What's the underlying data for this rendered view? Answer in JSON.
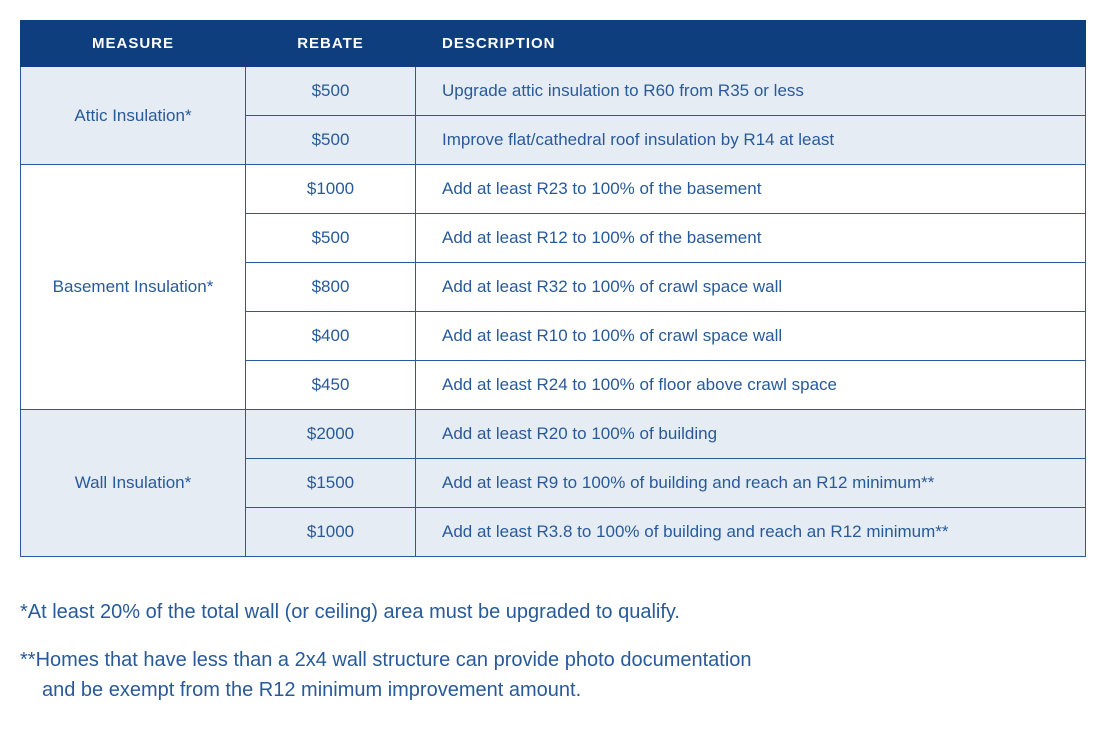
{
  "colors": {
    "header_bg": "#0f3e7e",
    "header_text": "#ffffff",
    "cell_text": "#285a9a",
    "border": "#2a5a9a",
    "row_alt_a": "#e6ecf4",
    "row_alt_b": "#ffffff"
  },
  "columns": {
    "measure": "MEASURE",
    "rebate": "REBATE",
    "description": "DESCRIPTION"
  },
  "sections": [
    {
      "measure": "Attic Insulation*",
      "rows": [
        {
          "rebate": "$500",
          "description": "Upgrade attic insulation to R60 from R35 or less"
        },
        {
          "rebate": "$500",
          "description": "Improve flat/cathedral roof insulation by R14 at least"
        }
      ]
    },
    {
      "measure": "Basement Insulation*",
      "rows": [
        {
          "rebate": "$1000",
          "description": "Add at least R23 to 100% of the basement"
        },
        {
          "rebate": "$500",
          "description": "Add at least R12 to 100% of the basement"
        },
        {
          "rebate": "$800",
          "description": "Add at least R32 to 100% of crawl space wall"
        },
        {
          "rebate": "$400",
          "description": "Add at least R10 to 100% of crawl space wall"
        },
        {
          "rebate": "$450",
          "description": "Add at least R24 to 100% of floor above crawl space"
        }
      ]
    },
    {
      "measure": "Wall Insulation*",
      "rows": [
        {
          "rebate": "$2000",
          "description": "Add at least R20 to 100% of building"
        },
        {
          "rebate": "$1500",
          "description": "Add at least R9 to 100% of building and reach an R12 minimum**"
        },
        {
          "rebate": "$1000",
          "description": "Add at least R3.8 to 100% of building and reach an R12 minimum**"
        }
      ]
    }
  ],
  "footnotes": {
    "note1": "*At least 20% of the total wall (or ceiling) area must be upgraded to qualify.",
    "note2_line1": "**Homes that have less than a 2x4 wall structure can provide photo documentation",
    "note2_line2": "and be exempt from the R12 minimum improvement amount."
  }
}
